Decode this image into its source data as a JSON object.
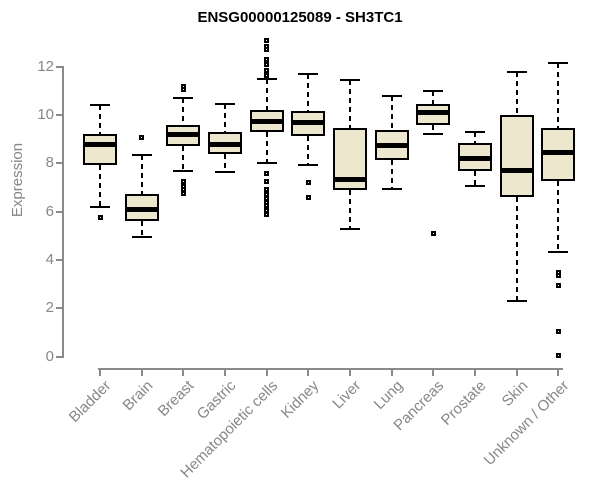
{
  "title": "ENSG00000125089 - SH3TC1",
  "chart_data": {
    "type": "boxplot",
    "title": "ENSG00000125089 - SH3TC1",
    "xlabel": "",
    "ylabel": "Expression",
    "ylim": [
      0,
      12
    ],
    "yticks": [
      0,
      2,
      4,
      6,
      8,
      10,
      12
    ],
    "grid": false,
    "legend": "none",
    "box_fill_color": "#EDE8CD",
    "box_border_color": "#000000",
    "axis_color": "#8A8A8A",
    "label_color": "#878787",
    "title_color": "#000000",
    "categories": [
      "Bladder",
      "Brain",
      "Breast",
      "Gastric",
      "Hematopoietic cells",
      "Kidney",
      "Liver",
      "Lung",
      "Pancreas",
      "Prostate",
      "Skin",
      "Unknown / Other"
    ],
    "series": [
      {
        "name": "Bladder",
        "whisker_high": 10.4,
        "q3": 9.2,
        "median": 8.8,
        "q1": 7.95,
        "whisker_low": 6.2,
        "outliers_high": [],
        "outliers_low": [
          5.75
        ]
      },
      {
        "name": "Brain",
        "whisker_high": 8.35,
        "q3": 6.75,
        "median": 6.1,
        "q1": 5.6,
        "whisker_low": 4.95,
        "outliers_high": [
          9.05
        ],
        "outliers_low": []
      },
      {
        "name": "Breast",
        "whisker_high": 10.7,
        "q3": 9.6,
        "median": 9.2,
        "q1": 8.7,
        "whisker_low": 7.7,
        "outliers_high": [
          11.2,
          11.05
        ],
        "outliers_low": [
          7.25,
          7.05,
          6.9,
          6.75
        ]
      },
      {
        "name": "Gastric",
        "whisker_high": 10.45,
        "q3": 9.3,
        "median": 8.8,
        "q1": 8.4,
        "whisker_low": 7.65,
        "outliers_high": [],
        "outliers_low": []
      },
      {
        "name": "Hematopoietic cells",
        "whisker_high": 11.5,
        "q3": 10.2,
        "median": 9.75,
        "q1": 9.3,
        "whisker_low": 8.0,
        "outliers_high": [
          13.1,
          12.85,
          12.7,
          12.3,
          12.1,
          11.85,
          11.65
        ],
        "outliers_low": [
          7.6,
          7.25,
          6.9,
          6.7,
          6.55,
          6.4,
          6.25,
          6.05,
          5.9
        ]
      },
      {
        "name": "Kidney",
        "whisker_high": 11.7,
        "q3": 10.15,
        "median": 9.7,
        "q1": 9.15,
        "whisker_low": 7.95,
        "outliers_high": [],
        "outliers_low": [
          7.2,
          6.6
        ]
      },
      {
        "name": "Liver",
        "whisker_high": 11.45,
        "q3": 9.45,
        "median": 7.35,
        "q1": 6.9,
        "whisker_low": 5.3,
        "outliers_high": [],
        "outliers_low": []
      },
      {
        "name": "Lung",
        "whisker_high": 10.8,
        "q3": 9.4,
        "median": 8.75,
        "q1": 8.15,
        "whisker_low": 6.95,
        "outliers_high": [],
        "outliers_low": []
      },
      {
        "name": "Pancreas",
        "whisker_high": 11.0,
        "q3": 10.45,
        "median": 10.1,
        "q1": 9.6,
        "whisker_low": 9.2,
        "outliers_high": [],
        "outliers_low": [
          5.1
        ]
      },
      {
        "name": "Prostate",
        "whisker_high": 9.3,
        "q3": 8.85,
        "median": 8.2,
        "q1": 7.7,
        "whisker_low": 7.05,
        "outliers_high": [],
        "outliers_low": []
      },
      {
        "name": "Skin",
        "whisker_high": 11.8,
        "q3": 10.0,
        "median": 7.7,
        "q1": 6.6,
        "whisker_low": 2.3,
        "outliers_high": [],
        "outliers_low": []
      },
      {
        "name": "Unknown / Other",
        "whisker_high": 12.15,
        "q3": 9.45,
        "median": 8.45,
        "q1": 7.25,
        "whisker_low": 4.35,
        "outliers_high": [],
        "outliers_low": [
          3.5,
          3.35,
          2.95,
          1.05,
          0.05
        ]
      }
    ]
  }
}
